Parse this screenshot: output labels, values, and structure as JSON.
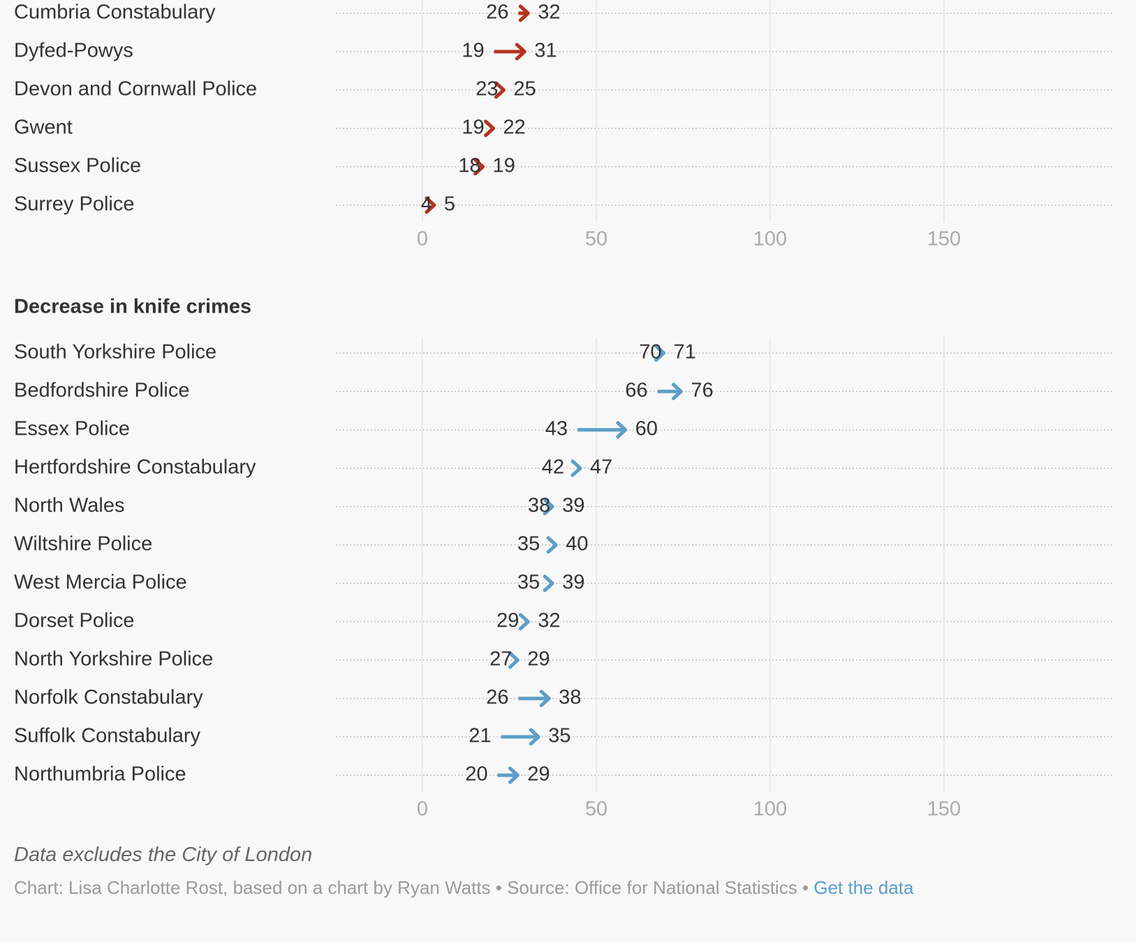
{
  "chart_data": [
    {
      "type": "arrow",
      "section": "increase",
      "title": "",
      "categories": [
        "Cumbria Constabulary",
        "Dyfed-Powys",
        "Devon and Cornwall Police",
        "Gwent",
        "Sussex Police",
        "Surrey Police"
      ],
      "series": [
        {
          "name": "",
          "values": [
            26,
            19,
            23,
            19,
            18,
            4
          ]
        },
        {
          "name": "",
          "values": [
            32,
            31,
            25,
            22,
            19,
            5
          ]
        }
      ],
      "xticks": [
        0,
        50,
        100,
        150
      ],
      "xlim": [
        -25,
        198
      ],
      "color": "#b5331e",
      "grid": true
    },
    {
      "type": "arrow",
      "section": "decrease",
      "title": "Decrease in knife crimes",
      "categories": [
        "South Yorkshire Police",
        "Bedfordshire Police",
        "Essex Police",
        "Hertfordshire Constabulary",
        "North Wales",
        "Wiltshire Police",
        "West Mercia Police",
        "Dorset Police",
        "North Yorkshire Police",
        "Norfolk Constabulary",
        "Suffolk Constabulary",
        "Northumbria Police"
      ],
      "series": [
        {
          "name": "",
          "values": [
            70,
            66,
            43,
            42,
            38,
            35,
            35,
            29,
            27,
            26,
            21,
            20
          ]
        },
        {
          "name": "",
          "values": [
            71,
            76,
            60,
            47,
            39,
            40,
            39,
            32,
            29,
            38,
            35,
            29
          ]
        }
      ],
      "xticks": [
        0,
        50,
        100,
        150
      ],
      "xlim": [
        -25,
        198
      ],
      "color": "#5d9ec9",
      "grid": true
    }
  ],
  "footer": {
    "note": "Data excludes the City of London",
    "credits_text": "Chart: Lisa Charlotte Rost, based on a chart by Ryan Watts • Source: Office for National Statistics • ",
    "get_data_label": "Get the data"
  }
}
